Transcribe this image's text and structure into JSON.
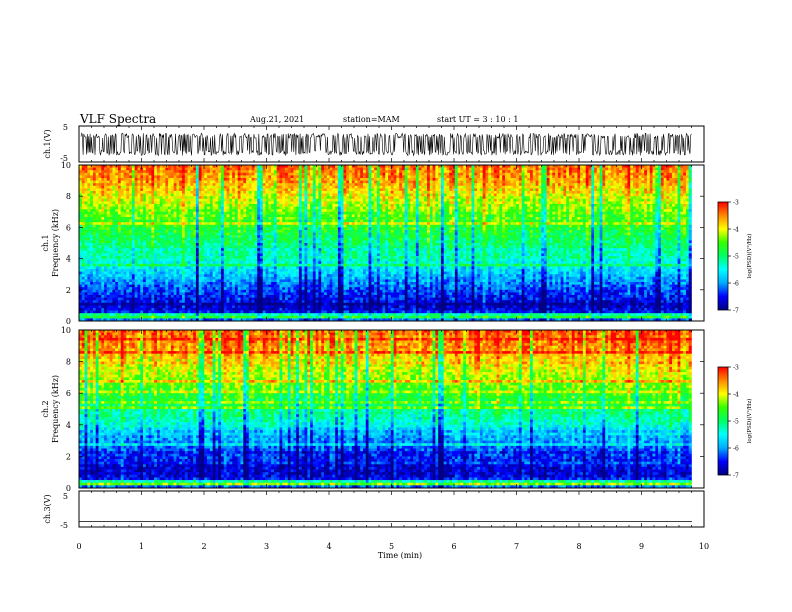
{
  "header": {
    "title": "VLF Spectra",
    "date": "Aug.21, 2021",
    "station": "station=MAM",
    "start_ut": "start  UT =   3  : 10 : 1"
  },
  "chart_data": [
    {
      "type": "line",
      "panel": "ch1-waveform",
      "ylabel": "ch.1(V)",
      "ylim": [
        -5,
        5
      ],
      "y_ticks": [
        "5",
        "-5"
      ],
      "xlim": [
        0,
        10
      ],
      "description_of_series": "noisy waveform ±~3 V",
      "amplitude_range": [
        -3.2,
        3.0
      ]
    },
    {
      "type": "heatmap",
      "panel": "ch1-spectrogram",
      "ylabel_line1": "ch.1",
      "ylabel_line2": "Frequency (kHz)",
      "ylim": [
        0,
        10
      ],
      "y_ticks": [
        "0",
        "2",
        "4",
        "6",
        "8",
        "10"
      ],
      "xlim": [
        0,
        10
      ],
      "data_extent_min": 9.8,
      "colorbar": {
        "label": "log(PSD)(V²/Hz)",
        "range": [
          -7,
          -3
        ],
        "ticks": [
          "-3",
          "-4",
          "-5",
          "-6",
          "-7"
        ]
      },
      "value_profile_by_frequency_khz": [
        [
          0.0,
          -6.8
        ],
        [
          0.3,
          -4.3
        ],
        [
          0.6,
          -6.6
        ],
        [
          1.0,
          -6.7
        ],
        [
          2.0,
          -6.3
        ],
        [
          3.0,
          -5.8
        ],
        [
          4.0,
          -5.3
        ],
        [
          5.0,
          -5.0
        ],
        [
          6.0,
          -4.7
        ],
        [
          7.0,
          -4.4
        ],
        [
          8.0,
          -4.0
        ],
        [
          9.0,
          -3.6
        ],
        [
          10.0,
          -3.4
        ]
      ]
    },
    {
      "type": "heatmap",
      "panel": "ch2-spectrogram",
      "ylabel_line1": "ch.2",
      "ylabel_line2": "Frequency (kHz)",
      "ylim": [
        0,
        10
      ],
      "y_ticks": [
        "0",
        "2",
        "4",
        "6",
        "8",
        "10"
      ],
      "xlim": [
        0,
        10
      ],
      "data_extent_min": 9.8,
      "colorbar": {
        "label": "log(PSD)(V²/Hz)",
        "range": [
          -7,
          -3
        ],
        "ticks": [
          "-3",
          "-4",
          "-5",
          "-6",
          "-7"
        ]
      },
      "value_profile_by_frequency_khz": [
        [
          0.0,
          -6.8
        ],
        [
          0.3,
          -4.3
        ],
        [
          0.6,
          -6.6
        ],
        [
          1.0,
          -6.7
        ],
        [
          2.0,
          -6.4
        ],
        [
          3.0,
          -6.0
        ],
        [
          4.0,
          -5.4
        ],
        [
          5.0,
          -5.0
        ],
        [
          6.0,
          -4.6
        ],
        [
          7.0,
          -4.2
        ],
        [
          8.0,
          -3.9
        ],
        [
          9.0,
          -3.5
        ],
        [
          10.0,
          -3.3
        ]
      ]
    },
    {
      "type": "line",
      "panel": "ch3-waveform",
      "ylabel": "ch.3(V)",
      "ylim": [
        -5,
        5
      ],
      "y_ticks": [
        "5",
        "-5"
      ],
      "xlim": [
        0,
        10
      ],
      "constant_value": -3.5
    }
  ],
  "x_axis": {
    "xlabel": "Time (min)",
    "ticks": [
      "0",
      "1",
      "2",
      "3",
      "4",
      "5",
      "6",
      "7",
      "8",
      "9",
      "10"
    ]
  },
  "colors": {
    "colormap": [
      "#000080",
      "#0000ff",
      "#00aaff",
      "#00ffff",
      "#00ff66",
      "#33ff00",
      "#ffff00",
      "#ff8800",
      "#ff0000"
    ],
    "frame": "#000000"
  }
}
